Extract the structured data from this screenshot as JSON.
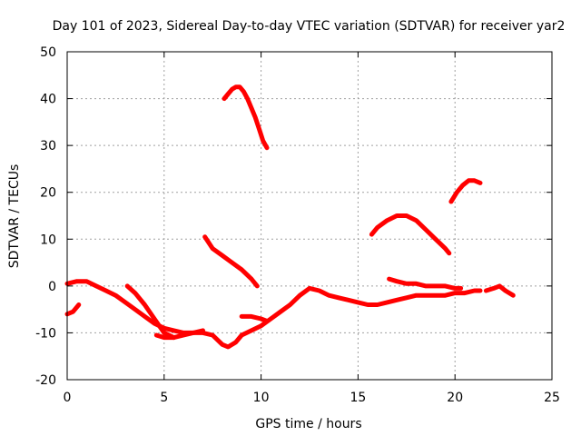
{
  "chart_data": {
    "type": "line",
    "title": "Day 101 of 2023, Sidereal Day-to-day VTEC variation (SDTVAR) for receiver yar2",
    "xlabel": "GPS time / hours",
    "ylabel": "SDTVAR / TECUs",
    "xlim": [
      0,
      25
    ],
    "ylim": [
      -20,
      50
    ],
    "xticks": [
      0,
      5,
      10,
      15,
      20,
      25
    ],
    "yticks": [
      -20,
      -10,
      0,
      10,
      20,
      30,
      40,
      50
    ],
    "grid": true,
    "legend": "none",
    "series_color": "#ff0000",
    "series": [
      {
        "name": "segment-1",
        "x": [
          0.0,
          0.3,
          0.6
        ],
        "y": [
          -6,
          -5.5,
          -4
        ]
      },
      {
        "name": "segment-2",
        "x": [
          0.0,
          0.5,
          1.0,
          1.5,
          2.0,
          2.5,
          3.0,
          3.5,
          4.0,
          4.5,
          5.0,
          5.5,
          6.0,
          6.5,
          7.0,
          7.5,
          8.0,
          8.3,
          8.7,
          9.0,
          9.5,
          10.0,
          10.5,
          11.0,
          11.5,
          12.0,
          12.5,
          13.0,
          13.5,
          14.0,
          14.5,
          15.0,
          15.5,
          16.0,
          16.5,
          17.0,
          17.5,
          18.0,
          18.5,
          19.0,
          19.5,
          20.0,
          20.5,
          21.0,
          21.3
        ],
        "y": [
          0.5,
          1,
          1,
          0,
          -1,
          -2,
          -3.5,
          -5,
          -6.5,
          -8,
          -9,
          -9.5,
          -10,
          -10,
          -10,
          -10.5,
          -12.5,
          -13,
          -12,
          -10.5,
          -9.5,
          -8.5,
          -7,
          -5.5,
          -4,
          -2,
          -0.5,
          -1,
          -2,
          -2.5,
          -3,
          -3.5,
          -4,
          -4,
          -3.5,
          -3,
          -2.5,
          -2,
          -2,
          -2,
          -2,
          -1.5,
          -1.5,
          -1,
          -1
        ]
      },
      {
        "name": "segment-3",
        "x": [
          3.1,
          3.5,
          4.0,
          4.5,
          5.0,
          5.5
        ],
        "y": [
          0,
          -1.5,
          -4,
          -7,
          -10,
          -11
        ]
      },
      {
        "name": "segment-4",
        "x": [
          4.6,
          5.0,
          5.5,
          6.0,
          6.5,
          7.0
        ],
        "y": [
          -10.5,
          -11,
          -11,
          -10.5,
          -10,
          -9.5
        ]
      },
      {
        "name": "segment-5",
        "x": [
          7.1,
          7.5,
          8.0,
          8.5,
          9.0,
          9.5,
          9.8
        ],
        "y": [
          10.5,
          8,
          6.5,
          5,
          3.5,
          1.5,
          0
        ]
      },
      {
        "name": "segment-6",
        "x": [
          8.1,
          8.3,
          8.5,
          8.7,
          8.9,
          9.1,
          9.3,
          9.5,
          9.7,
          9.9,
          10.1,
          10.3
        ],
        "y": [
          40,
          41,
          42,
          42.5,
          42.5,
          41.5,
          40,
          38,
          36,
          33.5,
          31,
          29.5
        ]
      },
      {
        "name": "segment-7",
        "x": [
          9.0,
          9.5,
          10.0,
          10.3
        ],
        "y": [
          -6.5,
          -6.5,
          -7,
          -7.5
        ]
      },
      {
        "name": "segment-8",
        "x": [
          15.7,
          16.0,
          16.5,
          17.0,
          17.5,
          18.0,
          18.5,
          19.0,
          19.5,
          19.7
        ],
        "y": [
          11,
          12.5,
          14,
          15,
          15,
          14,
          12,
          10,
          8,
          7
        ]
      },
      {
        "name": "segment-9",
        "x": [
          16.6,
          17.0,
          17.5,
          18.0,
          18.5,
          19.0,
          19.5,
          20.0,
          20.3
        ],
        "y": [
          1.5,
          1,
          0.5,
          0.5,
          0,
          0,
          0,
          -0.5,
          -0.5
        ]
      },
      {
        "name": "segment-10",
        "x": [
          19.8,
          20.1,
          20.4,
          20.7,
          21.0,
          21.3
        ],
        "y": [
          18,
          20,
          21.5,
          22.5,
          22.5,
          22
        ]
      },
      {
        "name": "segment-11",
        "x": [
          21.6,
          22.0,
          22.3,
          22.6,
          23.0
        ],
        "y": [
          -1,
          -0.5,
          0,
          -1,
          -2
        ]
      }
    ]
  }
}
